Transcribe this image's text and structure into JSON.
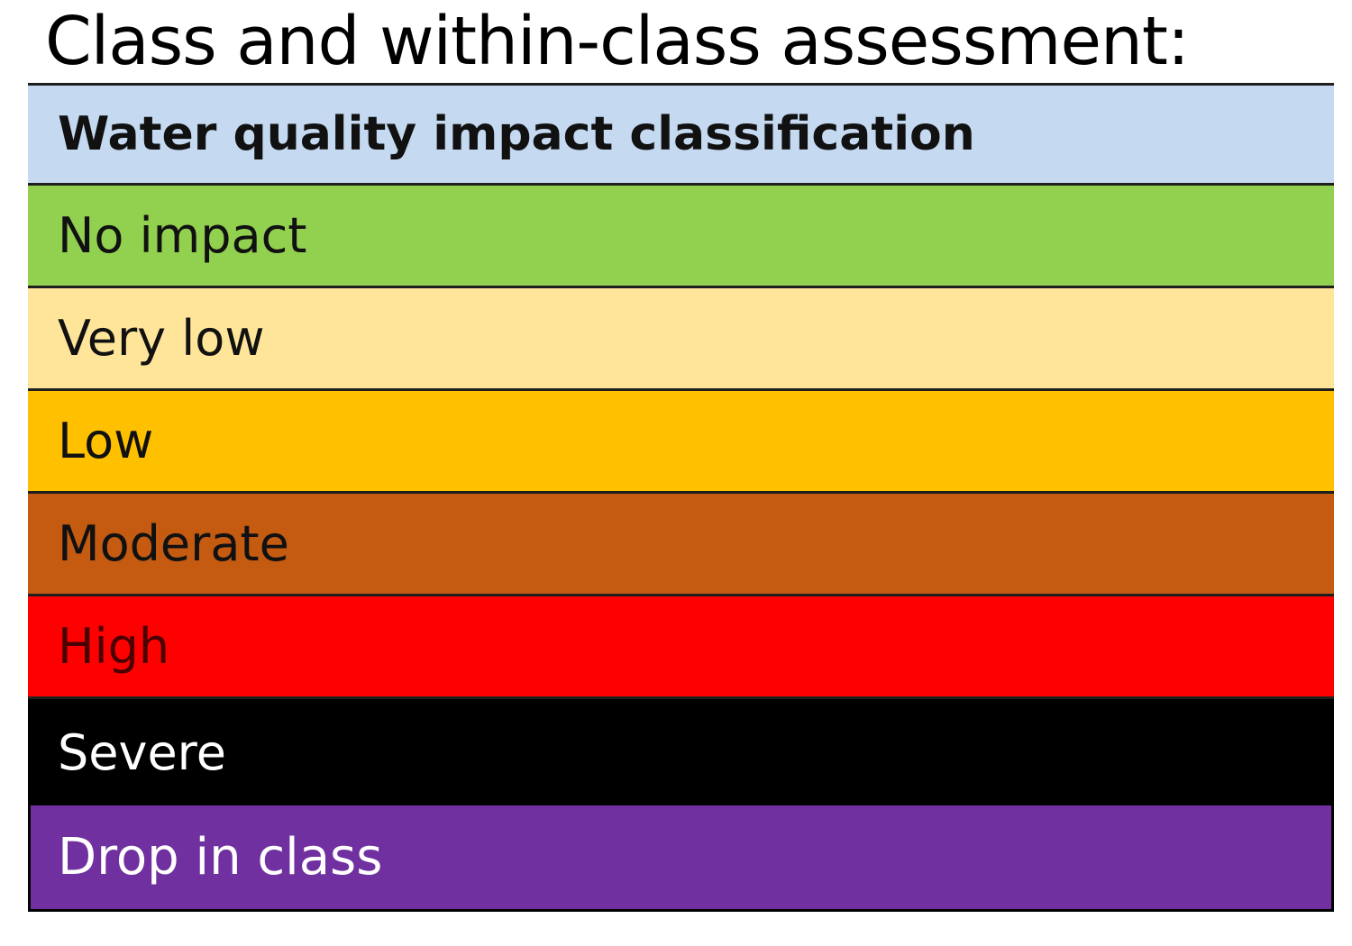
{
  "title": "Class and within-class assessment:",
  "table": {
    "header": {
      "label": "Water quality impact classification",
      "bg": "#c5d9f0",
      "color": "#111111"
    },
    "rows": [
      {
        "label": "No impact",
        "bg": "#92d050",
        "color": "#111111"
      },
      {
        "label": "Very low",
        "bg": "#ffe59a",
        "color": "#111111"
      },
      {
        "label": "Low",
        "bg": "#ffc000",
        "color": "#111111"
      },
      {
        "label": "Moderate",
        "bg": "#c55a11",
        "color": "#111111"
      },
      {
        "label": "High",
        "bg": "#ff0000",
        "color": "#4a0000"
      },
      {
        "label": "Severe",
        "bg": "#000000",
        "color": "#ffffff"
      }
    ]
  },
  "drop_box": {
    "label": "Drop in class",
    "bg": "#7030a0",
    "color": "#ffffff"
  }
}
